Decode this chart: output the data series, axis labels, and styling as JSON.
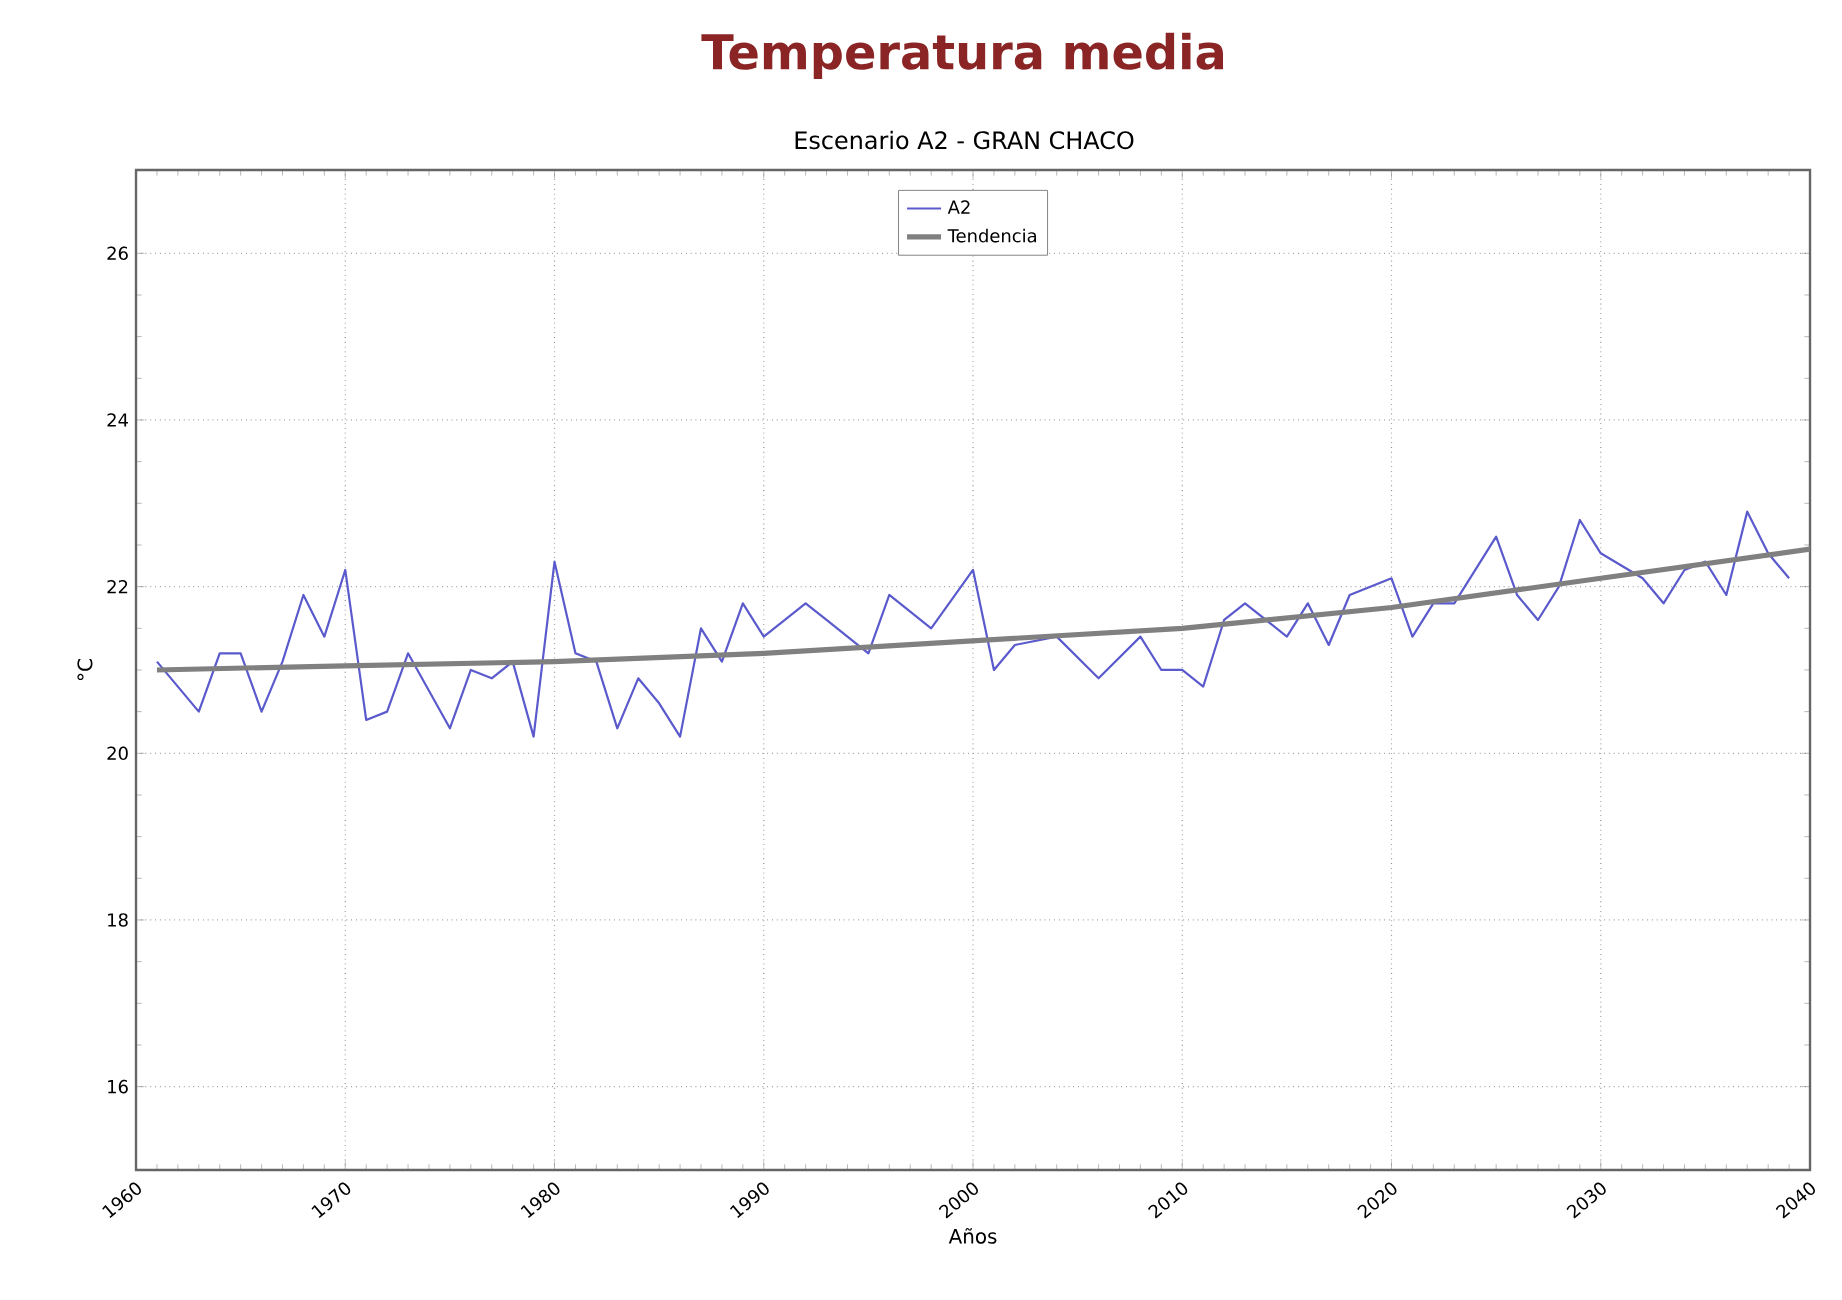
{
  "chart_data": {
    "type": "line",
    "title": "Temperatura media",
    "subtitle": "Escenario A2 - GRAN CHACO",
    "xlabel": "Años",
    "ylabel": "°C",
    "xlim": [
      1960,
      2040
    ],
    "ylim": [
      15,
      27
    ],
    "xticks": [
      1960,
      1970,
      1980,
      1990,
      2000,
      2010,
      2020,
      2030,
      2040
    ],
    "yticks": [
      16,
      18,
      20,
      22,
      24,
      26
    ],
    "grid": true,
    "legend": "top",
    "series": [
      {
        "name": "A2",
        "color": "#5a5acd",
        "x": [
          1961,
          1963,
          1964,
          1965,
          1966,
          1967,
          1968,
          1969,
          1970,
          1971,
          1972,
          1973,
          1975,
          1976,
          1977,
          1978,
          1979,
          1980,
          1981,
          1982,
          1983,
          1984,
          1985,
          1986,
          1987,
          1988,
          1989,
          1990,
          1992,
          1993,
          1995,
          1996,
          1998,
          2000,
          2001,
          2002,
          2004,
          2006,
          2008,
          2009,
          2010,
          2011,
          2012,
          2013,
          2015,
          2016,
          2017,
          2018,
          2020,
          2021,
          2022,
          2023,
          2025,
          2026,
          2027,
          2028,
          2029,
          2030,
          2032,
          2033,
          2034,
          2035,
          2036,
          2037,
          2038,
          2039
        ],
        "values": [
          21.1,
          20.5,
          21.2,
          21.2,
          20.5,
          21.1,
          21.9,
          21.4,
          22.2,
          20.4,
          20.5,
          21.2,
          20.3,
          21.0,
          20.9,
          21.1,
          20.2,
          22.3,
          21.2,
          21.1,
          20.3,
          20.9,
          20.6,
          20.2,
          21.5,
          21.1,
          21.8,
          21.4,
          21.8,
          21.6,
          21.2,
          21.9,
          21.5,
          22.2,
          21.0,
          21.3,
          21.4,
          20.9,
          21.4,
          21.0,
          21.0,
          20.8,
          21.6,
          21.8,
          21.4,
          21.8,
          21.3,
          21.9,
          22.1,
          21.4,
          21.8,
          21.8,
          22.6,
          21.9,
          21.6,
          22.0,
          22.8,
          22.4,
          22.1,
          21.8,
          22.2,
          22.3,
          21.9,
          22.9,
          22.4,
          22.1
        ]
      },
      {
        "name": "Tendencia",
        "color": "#808080",
        "x": [
          1961,
          1970,
          1980,
          1990,
          2000,
          2010,
          2020,
          2030,
          2040
        ],
        "values": [
          21.0,
          21.05,
          21.1,
          21.2,
          21.35,
          21.5,
          21.75,
          22.1,
          22.45
        ]
      }
    ]
  }
}
